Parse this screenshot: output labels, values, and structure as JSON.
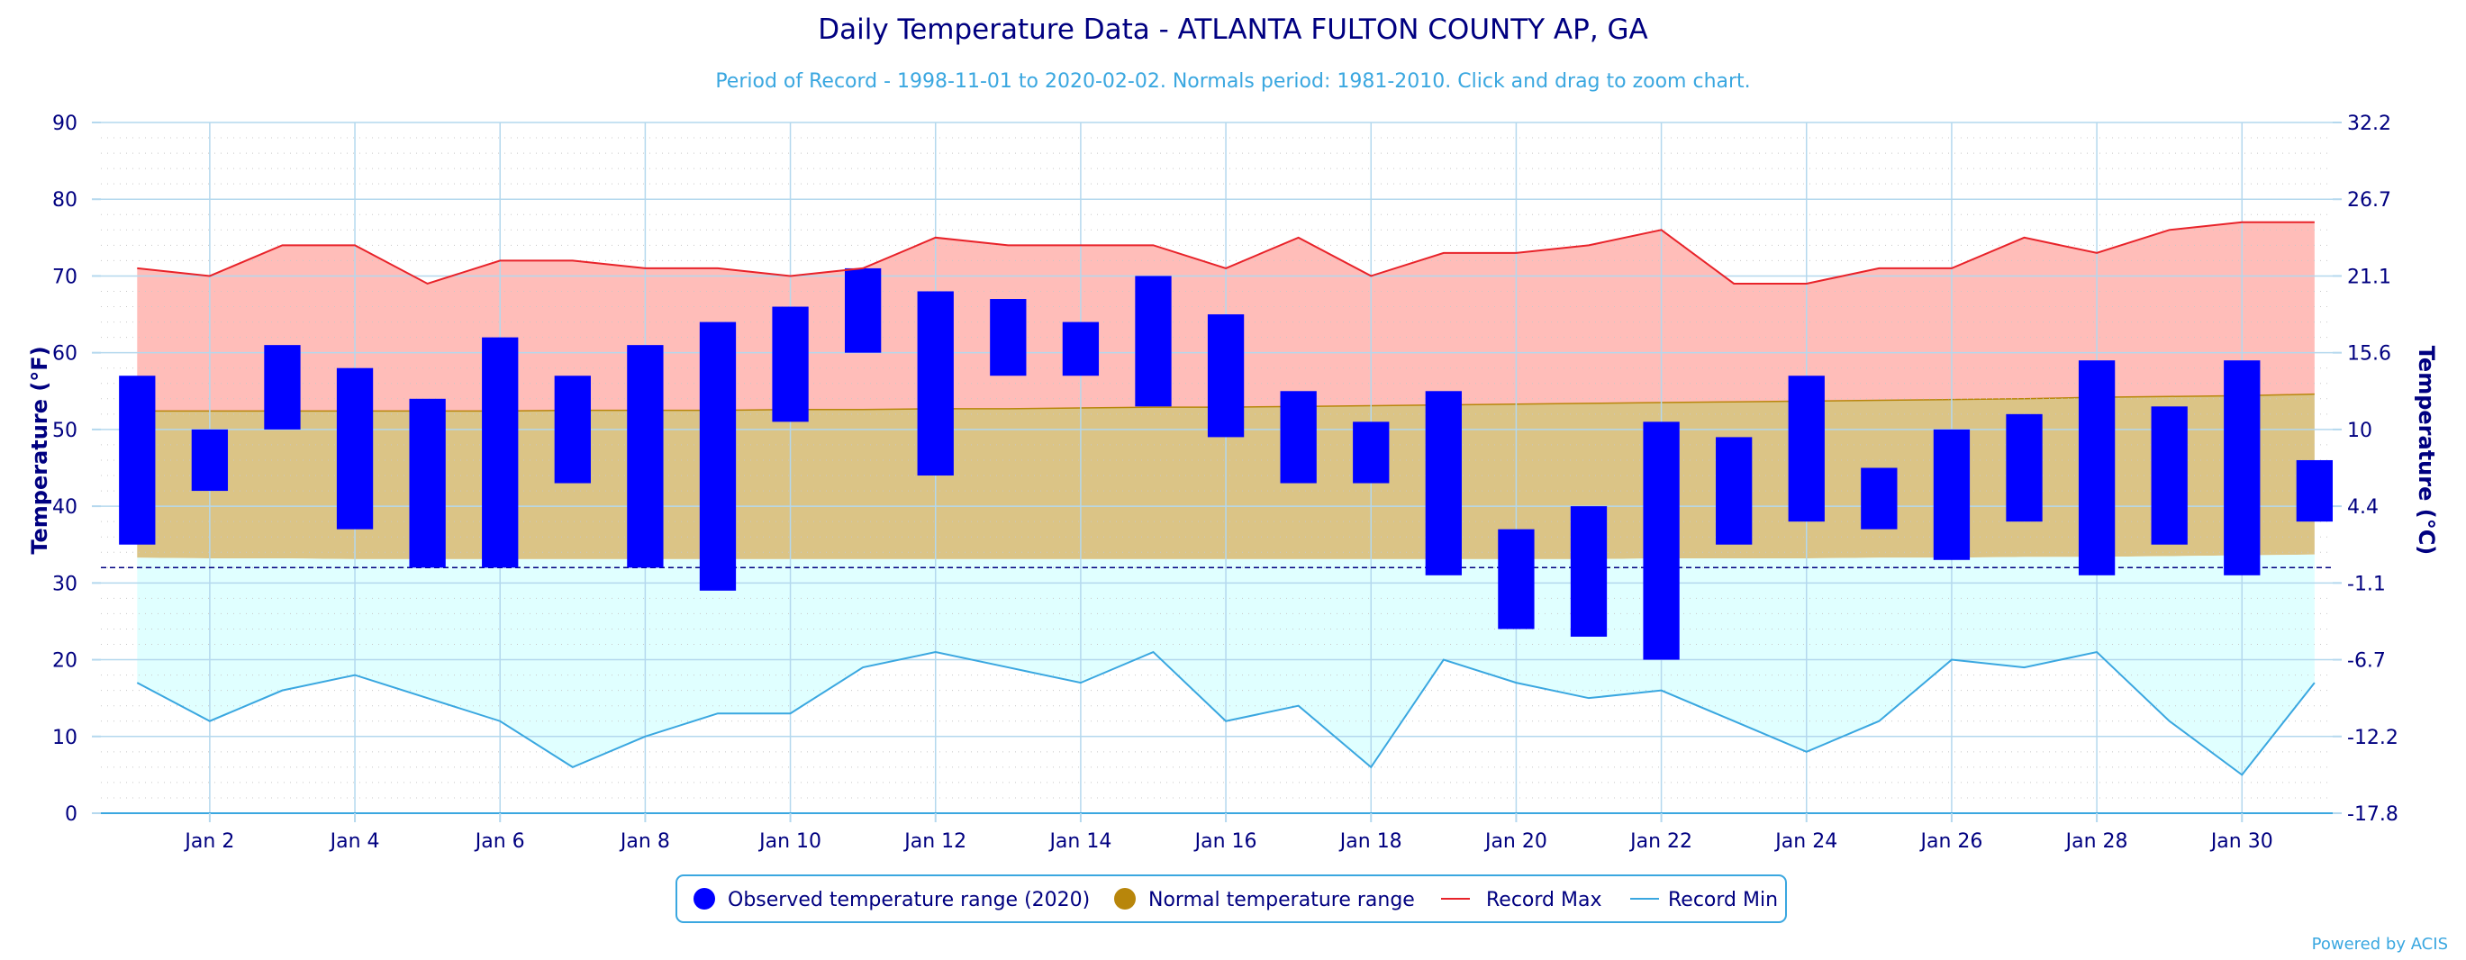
{
  "chart_data": {
    "type": "bar",
    "title": "Daily Temperature Data - ATLANTA FULTON COUNTY AP, GA",
    "subtitle": "Period of Record - 1998-11-01 to 2020-02-02. Normals period: 1981-2010. Click and drag to zoom chart.",
    "ylabel": "Temperature (°F)",
    "y2label": "Temperature (°C)",
    "ylim": [
      0,
      90
    ],
    "yticks": [
      0,
      10,
      20,
      30,
      40,
      50,
      60,
      70,
      80,
      90
    ],
    "y2ticks": [
      "-17.8",
      "-12.2",
      "-6.7",
      "-1.1",
      "4.4",
      "10",
      "15.6",
      "21.1",
      "26.7",
      "32.2"
    ],
    "xlim": [
      0.5,
      31.25
    ],
    "xticks": [
      2,
      4,
      6,
      8,
      10,
      12,
      14,
      16,
      18,
      20,
      22,
      24,
      26,
      28,
      30
    ],
    "xticklabels": [
      "Jan 2",
      "Jan 4",
      "Jan 6",
      "Jan 8",
      "Jan 10",
      "Jan 12",
      "Jan 14",
      "Jan 16",
      "Jan 18",
      "Jan 20",
      "Jan 22",
      "Jan 24",
      "Jan 26",
      "Jan 28",
      "Jan 30"
    ],
    "freezing_line": 32,
    "grid": true,
    "legend_position": "bottom",
    "days": [
      1,
      2,
      3,
      4,
      5,
      6,
      7,
      8,
      9,
      10,
      11,
      12,
      13,
      14,
      15,
      16,
      17,
      18,
      19,
      20,
      21,
      22,
      23,
      24,
      25,
      26,
      27,
      28,
      29,
      30,
      31
    ],
    "series": [
      {
        "name": "Observed temperature range (2020)",
        "color": "#0000ff",
        "low": [
          35,
          42,
          50,
          37,
          32,
          32,
          43,
          32,
          29,
          51,
          60,
          44,
          57,
          57,
          53,
          49,
          43,
          43,
          31,
          24,
          23,
          20,
          35,
          38,
          37,
          33,
          38,
          31,
          35,
          31,
          38
        ],
        "high": [
          57,
          50,
          61,
          58,
          54,
          62,
          57,
          61,
          64,
          66,
          71,
          68,
          67,
          64,
          70,
          65,
          55,
          51,
          55,
          37,
          40,
          51,
          49,
          57,
          45,
          50,
          52,
          59,
          53,
          59,
          46
        ]
      },
      {
        "name": "Normal temperature range",
        "color": "#b8860b",
        "low": [
          33.3,
          33.2,
          33.2,
          33.1,
          33.1,
          33.1,
          33.1,
          33.1,
          33.1,
          33.1,
          33.1,
          33.1,
          33.1,
          33.1,
          33.1,
          33.1,
          33.1,
          33.1,
          33.1,
          33.1,
          33.1,
          33.2,
          33.2,
          33.2,
          33.3,
          33.3,
          33.4,
          33.4,
          33.5,
          33.6,
          33.7
        ],
        "high": [
          52.4,
          52.4,
          52.4,
          52.4,
          52.4,
          52.4,
          52.5,
          52.5,
          52.5,
          52.6,
          52.6,
          52.7,
          52.7,
          52.8,
          52.9,
          52.9,
          53.0,
          53.1,
          53.2,
          53.3,
          53.4,
          53.5,
          53.6,
          53.7,
          53.8,
          53.9,
          54.0,
          54.2,
          54.3,
          54.4,
          54.6
        ]
      },
      {
        "name": "Record Max",
        "color": "#e8232a",
        "values": [
          71,
          70,
          74,
          74,
          69,
          72,
          72,
          71,
          71,
          70,
          71,
          75,
          74,
          74,
          74,
          71,
          75,
          70,
          73,
          73,
          74,
          76,
          69,
          69,
          71,
          71,
          75,
          73,
          76,
          77,
          77
        ]
      },
      {
        "name": "Record Min",
        "color": "#3aa7e0",
        "values": [
          17,
          12,
          16,
          18,
          15,
          12,
          6,
          10,
          13,
          13,
          19,
          21,
          19,
          17,
          21,
          12,
          14,
          6,
          20,
          17,
          15,
          16,
          12,
          8,
          12,
          20,
          19,
          21,
          12,
          5,
          17
        ]
      }
    ]
  },
  "credit": "Powered by ACIS",
  "colors": {
    "record_max_fill": "#ffbdb9",
    "normal_fill": "#dbc486",
    "record_min_fill": "#e0ffff",
    "grid": "#b4d8ee",
    "axis": "#000080"
  }
}
